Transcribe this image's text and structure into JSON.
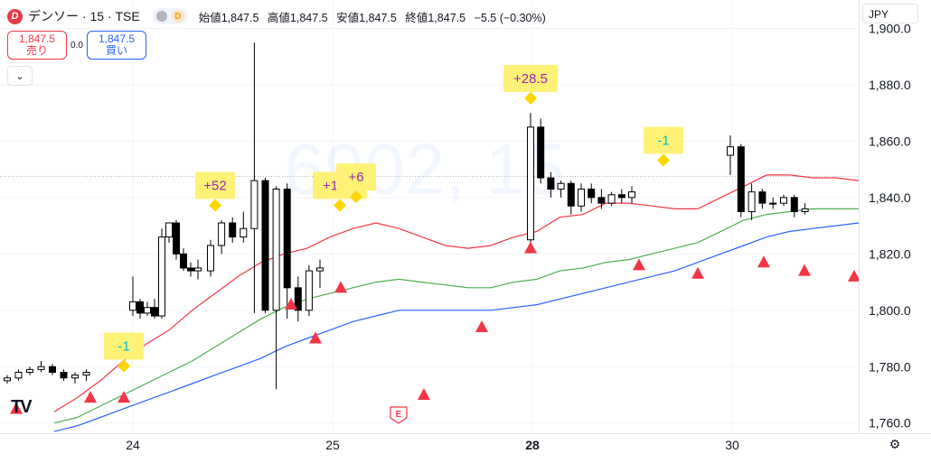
{
  "header": {
    "logo_letter": "D",
    "title": "デンソー · 15 · TSE",
    "status_badge": "D",
    "open_label": "始値",
    "open": "1,847.5",
    "high_label": "高値",
    "high": "1,847.5",
    "low_label": "安値",
    "low": "1,847.5",
    "close_label": "終値",
    "close": "1,847.5",
    "change": "−5.5 (−0.30%)"
  },
  "trade": {
    "sell_price": "1,847.5",
    "sell_label": "売り",
    "spread": "0.0",
    "buy_price": "1,847.5",
    "buy_label": "買い"
  },
  "currency": "JPY",
  "watermark": "6902, 15",
  "colors": {
    "up": "#ffffff",
    "down": "#000000",
    "ema_short": "#f23645",
    "ema_mid": "#4caf50",
    "ema_long": "#2962ff",
    "signal": "#f23645",
    "label_bg": "#fff176",
    "label_text": "#9c27b0",
    "label_neg": "#00bcd4"
  },
  "chart_data": {
    "type": "candlestick",
    "ylim": [
      1760,
      1905
    ],
    "y_ticks": [
      "1,760.0",
      "1,780.0",
      "1,800.0",
      "1,820.0",
      "1,840.0",
      "1,860.0",
      "1,880.0",
      "1,900.0"
    ],
    "x_ticks": [
      {
        "label": "24",
        "index": 7
      },
      {
        "label": "25",
        "index": 18
      },
      {
        "label": "28",
        "index": 29
      },
      {
        "label": "30",
        "index": 40
      }
    ],
    "candles": [
      [
        1775,
        1777,
        1774,
        1776
      ],
      [
        1776,
        1779,
        1775,
        1778
      ],
      [
        1778,
        1780,
        1777,
        1779
      ],
      [
        1779,
        1782,
        1778,
        1780
      ],
      [
        1780,
        1781,
        1777,
        1778
      ],
      [
        1778,
        1779,
        1775,
        1776
      ],
      [
        1776,
        1778,
        1774,
        1777
      ],
      [
        1777,
        1779,
        1775,
        1778
      ],
      [
        1800,
        1812,
        1798,
        1803
      ],
      [
        1803,
        1804,
        1797,
        1799
      ],
      [
        1799,
        1803,
        1798,
        1801
      ],
      [
        1801,
        1804,
        1797,
        1798
      ],
      [
        1798,
        1829,
        1797,
        1826
      ],
      [
        1826,
        1831,
        1824,
        1831
      ],
      [
        1831,
        1832,
        1818,
        1820
      ],
      [
        1820,
        1822,
        1814,
        1815
      ],
      [
        1815,
        1817,
        1812,
        1814
      ],
      [
        1814,
        1818,
        1811,
        1815
      ],
      [
        1814,
        1825,
        1812,
        1823
      ],
      [
        1823,
        1832,
        1820,
        1831
      ],
      [
        1831,
        1833,
        1824,
        1826
      ],
      [
        1826,
        1835,
        1824,
        1829
      ],
      [
        1829,
        1895,
        1799,
        1846
      ],
      [
        1846,
        1847,
        1799,
        1800
      ],
      [
        1800,
        1844,
        1772,
        1843
      ],
      [
        1843,
        1845,
        1797,
        1808
      ],
      [
        1808,
        1812,
        1796,
        1800
      ],
      [
        1800,
        1816,
        1798,
        1814
      ],
      [
        1814,
        1818,
        1808,
        1815
      ],
      [
        1825,
        1870,
        1822,
        1865
      ],
      [
        1865,
        1868,
        1845,
        1847
      ],
      [
        1847,
        1849,
        1840,
        1843
      ],
      [
        1843,
        1846,
        1840,
        1845
      ],
      [
        1845,
        1846,
        1834,
        1837
      ],
      [
        1837,
        1845,
        1835,
        1843
      ],
      [
        1843,
        1845,
        1838,
        1840
      ],
      [
        1840,
        1843,
        1836,
        1838
      ],
      [
        1838,
        1842,
        1837,
        1841
      ],
      [
        1841,
        1843,
        1838,
        1840
      ],
      [
        1840,
        1844,
        1838,
        1842
      ],
      [
        1855,
        1862,
        1848,
        1858
      ],
      [
        1858,
        1859,
        1833,
        1835
      ],
      [
        1835,
        1845,
        1832,
        1842
      ],
      [
        1842,
        1843,
        1836,
        1838
      ],
      [
        1838,
        1840,
        1836,
        1838
      ],
      [
        1838,
        1841,
        1837,
        1840
      ],
      [
        1840,
        1841,
        1833,
        1835
      ],
      [
        1835,
        1838,
        1834,
        1836
      ]
    ],
    "ema_short": [
      1764,
      1769,
      1775,
      1782,
      1788,
      1793,
      1800,
      1806,
      1812,
      1817,
      1820,
      1822,
      1826,
      1829,
      1831,
      1829,
      1826,
      1823,
      1822,
      1823,
      1826,
      1828,
      1833,
      1834,
      1838,
      1838,
      1837,
      1836,
      1836,
      1840,
      1844,
      1848,
      1848,
      1847,
      1847,
      1846
    ],
    "ema_mid": [
      1760,
      1762,
      1766,
      1770,
      1774,
      1778,
      1782,
      1787,
      1792,
      1797,
      1801,
      1804,
      1806,
      1808,
      1810,
      1811,
      1810,
      1809,
      1808,
      1808,
      1810,
      1811,
      1814,
      1815,
      1817,
      1818,
      1820,
      1822,
      1824,
      1828,
      1832,
      1834,
      1835,
      1836,
      1836,
      1836
    ],
    "ema_long": [
      1757,
      1759,
      1762,
      1765,
      1768,
      1771,
      1774,
      1777,
      1780,
      1783,
      1787,
      1790,
      1793,
      1796,
      1798,
      1800,
      1800,
      1800,
      1800,
      1800,
      1801,
      1802,
      1804,
      1806,
      1808,
      1810,
      1812,
      1814,
      1817,
      1820,
      1823,
      1826,
      1828,
      1829,
      1830,
      1831
    ],
    "signals": [
      1769,
      1773,
      1773,
      1806,
      1794,
      1812,
      1774,
      1798,
      1826,
      1820,
      1817,
      1821,
      1818,
      1816,
      1817
    ],
    "labels": [
      {
        "text": "-1",
        "anchor": 1778,
        "type": "neg"
      },
      {
        "text": "+52",
        "anchor": 1835,
        "type": "pos"
      },
      {
        "text": "+18.5",
        "anchor": 1835,
        "type": "pos"
      },
      {
        "text": "+6",
        "anchor": 1838,
        "type": "pos"
      },
      {
        "text": "+28.5",
        "anchor": 1873,
        "type": "pos"
      },
      {
        "text": "-1",
        "anchor": 1851,
        "type": "neg"
      }
    ],
    "earnings_marker": "E"
  }
}
